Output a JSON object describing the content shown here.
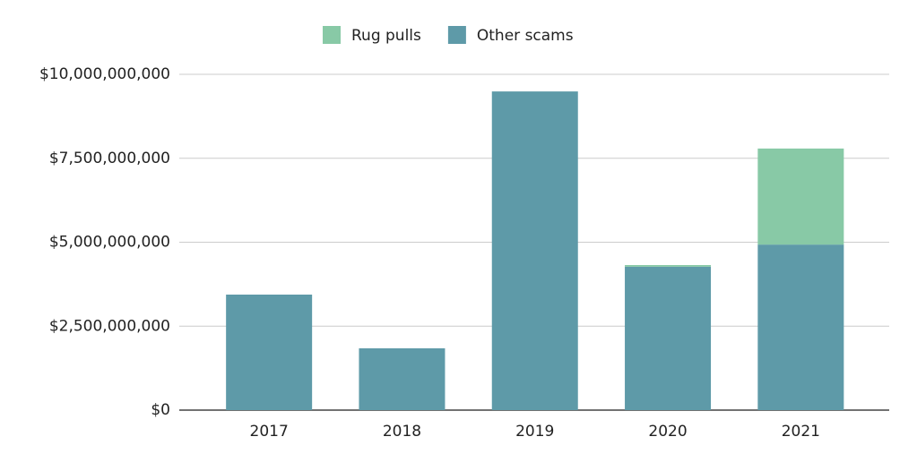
{
  "chart_data": {
    "type": "bar",
    "stacked": true,
    "categories": [
      "2017",
      "2018",
      "2019",
      "2020",
      "2021"
    ],
    "series": [
      {
        "name": "Rug pulls",
        "color": "#88c9a6",
        "values": [
          0,
          0,
          0,
          50000000,
          2860000000
        ]
      },
      {
        "name": "Other scams",
        "color": "#5e9aa8",
        "values": [
          3440000000,
          1840000000,
          9490000000,
          4270000000,
          4930000000
        ]
      }
    ],
    "ylim": [
      0,
      10000000000
    ],
    "yticks": [
      {
        "value": 0,
        "label": "$0"
      },
      {
        "value": 2500000000,
        "label": "$2,500,000,000"
      },
      {
        "value": 5000000000,
        "label": "$5,000,000,000"
      },
      {
        "value": 7500000000,
        "label": "$7,500,000,000"
      },
      {
        "value": 10000000000,
        "label": "$10,000,000,000"
      }
    ],
    "grid": true,
    "legend": "top"
  }
}
